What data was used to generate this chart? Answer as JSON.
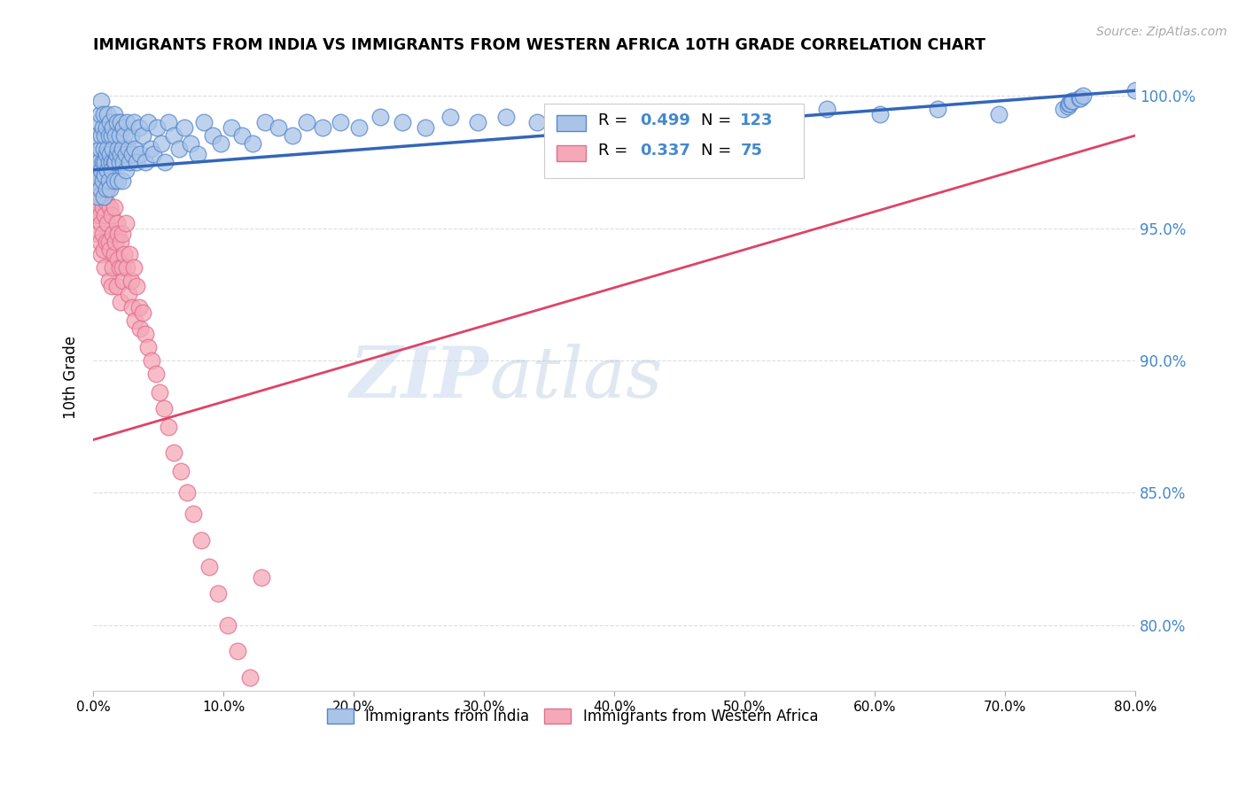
{
  "title": "IMMIGRANTS FROM INDIA VS IMMIGRANTS FROM WESTERN AFRICA 10TH GRADE CORRELATION CHART",
  "source": "Source: ZipAtlas.com",
  "ylabel": "10th Grade",
  "r_india": 0.499,
  "n_india": 123,
  "r_africa": 0.337,
  "n_africa": 75,
  "color_india": "#aac4e8",
  "color_india_edge": "#5588cc",
  "color_india_line": "#3366bb",
  "color_africa": "#f5a8b8",
  "color_africa_edge": "#e07090",
  "color_africa_line": "#dd4466",
  "ytick_labels": [
    "100.0%",
    "95.0%",
    "90.0%",
    "85.0%",
    "80.0%"
  ],
  "ytick_values": [
    1.0,
    0.95,
    0.9,
    0.85,
    0.8
  ],
  "xlim": [
    0.0,
    0.8
  ],
  "ylim": [
    0.775,
    1.012
  ],
  "xtick_positions": [
    0.0,
    0.1,
    0.2,
    0.3,
    0.4,
    0.5,
    0.6,
    0.7,
    0.8
  ],
  "xtick_labels": [
    "0.0%",
    "10.0%",
    "20.0%",
    "30.0%",
    "40.0%",
    "50.0%",
    "60.0%",
    "70.0%",
    "80.0%"
  ],
  "grid_color": "#dddddd",
  "background_color": "#ffffff",
  "india_x": [
    0.001,
    0.002,
    0.002,
    0.003,
    0.003,
    0.004,
    0.004,
    0.005,
    0.005,
    0.005,
    0.006,
    0.006,
    0.006,
    0.007,
    0.007,
    0.007,
    0.008,
    0.008,
    0.008,
    0.009,
    0.009,
    0.009,
    0.01,
    0.01,
    0.01,
    0.011,
    0.011,
    0.011,
    0.012,
    0.012,
    0.012,
    0.013,
    0.013,
    0.013,
    0.014,
    0.014,
    0.014,
    0.015,
    0.015,
    0.016,
    0.016,
    0.016,
    0.017,
    0.017,
    0.018,
    0.018,
    0.019,
    0.019,
    0.02,
    0.02,
    0.021,
    0.021,
    0.022,
    0.022,
    0.023,
    0.023,
    0.024,
    0.025,
    0.025,
    0.026,
    0.027,
    0.028,
    0.029,
    0.03,
    0.031,
    0.032,
    0.033,
    0.035,
    0.036,
    0.038,
    0.04,
    0.042,
    0.044,
    0.046,
    0.049,
    0.052,
    0.055,
    0.058,
    0.062,
    0.066,
    0.07,
    0.075,
    0.08,
    0.085,
    0.092,
    0.098,
    0.106,
    0.114,
    0.122,
    0.132,
    0.142,
    0.153,
    0.164,
    0.176,
    0.19,
    0.204,
    0.22,
    0.237,
    0.255,
    0.274,
    0.295,
    0.317,
    0.341,
    0.366,
    0.394,
    0.423,
    0.455,
    0.489,
    0.525,
    0.563,
    0.604,
    0.648,
    0.695,
    0.745,
    0.748,
    0.749,
    0.75,
    0.751,
    0.752,
    0.757,
    0.758,
    0.76,
    0.8
  ],
  "india_y": [
    0.973,
    0.968,
    0.985,
    0.978,
    0.962,
    0.99,
    0.975,
    0.98,
    0.993,
    0.965,
    0.985,
    0.972,
    0.998,
    0.975,
    0.968,
    0.988,
    0.98,
    0.962,
    0.993,
    0.975,
    0.985,
    0.97,
    0.988,
    0.978,
    0.965,
    0.993,
    0.98,
    0.972,
    0.985,
    0.975,
    0.968,
    0.99,
    0.978,
    0.965,
    0.985,
    0.975,
    0.972,
    0.988,
    0.98,
    0.993,
    0.975,
    0.968,
    0.985,
    0.975,
    0.99,
    0.978,
    0.98,
    0.968,
    0.985,
    0.975,
    0.99,
    0.978,
    0.98,
    0.968,
    0.988,
    0.975,
    0.985,
    0.978,
    0.972,
    0.99,
    0.98,
    0.975,
    0.985,
    0.978,
    0.99,
    0.98,
    0.975,
    0.988,
    0.978,
    0.985,
    0.975,
    0.99,
    0.98,
    0.978,
    0.988,
    0.982,
    0.975,
    0.99,
    0.985,
    0.98,
    0.988,
    0.982,
    0.978,
    0.99,
    0.985,
    0.982,
    0.988,
    0.985,
    0.982,
    0.99,
    0.988,
    0.985,
    0.99,
    0.988,
    0.99,
    0.988,
    0.992,
    0.99,
    0.988,
    0.992,
    0.99,
    0.992,
    0.99,
    0.992,
    0.99,
    0.993,
    0.992,
    0.993,
    0.992,
    0.995,
    0.993,
    0.995,
    0.993,
    0.995,
    0.996,
    0.997,
    0.997,
    0.998,
    0.998,
    0.999,
    0.999,
    1.0,
    1.002
  ],
  "africa_x": [
    0.001,
    0.001,
    0.002,
    0.002,
    0.003,
    0.003,
    0.004,
    0.004,
    0.005,
    0.005,
    0.005,
    0.006,
    0.006,
    0.007,
    0.007,
    0.008,
    0.008,
    0.009,
    0.009,
    0.01,
    0.01,
    0.011,
    0.011,
    0.012,
    0.012,
    0.013,
    0.013,
    0.014,
    0.014,
    0.015,
    0.015,
    0.016,
    0.016,
    0.017,
    0.018,
    0.018,
    0.019,
    0.019,
    0.02,
    0.021,
    0.021,
    0.022,
    0.022,
    0.023,
    0.024,
    0.025,
    0.026,
    0.027,
    0.028,
    0.029,
    0.03,
    0.031,
    0.032,
    0.033,
    0.035,
    0.036,
    0.038,
    0.04,
    0.042,
    0.045,
    0.048,
    0.051,
    0.054,
    0.058,
    0.062,
    0.067,
    0.072,
    0.077,
    0.083,
    0.089,
    0.096,
    0.103,
    0.111,
    0.12,
    0.129
  ],
  "africa_y": [
    0.955,
    0.967,
    0.96,
    0.972,
    0.958,
    0.948,
    0.965,
    0.975,
    0.955,
    0.945,
    0.962,
    0.952,
    0.94,
    0.958,
    0.948,
    0.965,
    0.942,
    0.955,
    0.935,
    0.96,
    0.945,
    0.952,
    0.965,
    0.945,
    0.93,
    0.958,
    0.942,
    0.955,
    0.928,
    0.948,
    0.935,
    0.958,
    0.94,
    0.945,
    0.952,
    0.928,
    0.938,
    0.948,
    0.935,
    0.945,
    0.922,
    0.935,
    0.948,
    0.93,
    0.94,
    0.952,
    0.935,
    0.925,
    0.94,
    0.93,
    0.92,
    0.935,
    0.915,
    0.928,
    0.92,
    0.912,
    0.918,
    0.91,
    0.905,
    0.9,
    0.895,
    0.888,
    0.882,
    0.875,
    0.865,
    0.858,
    0.85,
    0.842,
    0.832,
    0.822,
    0.812,
    0.8,
    0.79,
    0.78,
    0.818
  ]
}
